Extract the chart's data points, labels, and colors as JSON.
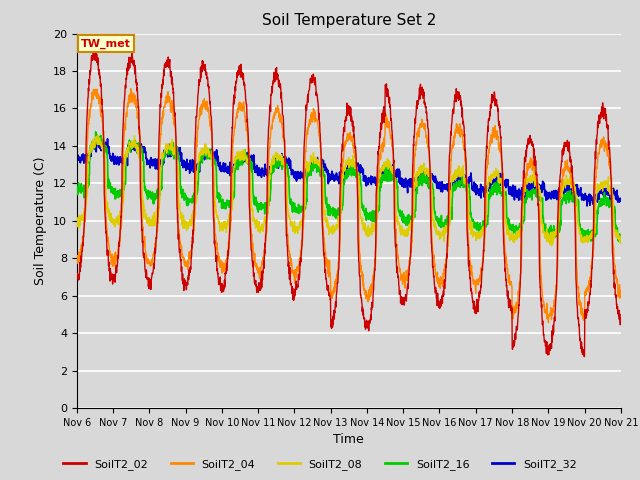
{
  "title": "Soil Temperature Set 2",
  "xlabel": "Time",
  "ylabel": "Soil Temperature (C)",
  "ylim": [
    0,
    20
  ],
  "annotation": "TW_met",
  "annotation_color": "#cc0000",
  "annotation_bg": "#ffffcc",
  "annotation_border": "#cc8800",
  "background_color": "#d8d8d8",
  "plot_bg": "#d8d8d8",
  "grid_color": "#ffffff",
  "tick_labels": [
    "Nov 6",
    "Nov 7",
    "Nov 8",
    "Nov 9",
    "Nov 10",
    "Nov 11",
    "Nov 12",
    "Nov 13",
    "Nov 14",
    "Nov 15",
    "Nov 16",
    "Nov 17",
    "Nov 18",
    "Nov 19",
    "Nov 20",
    "Nov 21"
  ],
  "legend": [
    "SoilT2_02",
    "SoilT2_04",
    "SoilT2_08",
    "SoilT2_16",
    "SoilT2_32"
  ],
  "colors": {
    "SoilT2_02": "#cc0000",
    "SoilT2_04": "#ff8800",
    "SoilT2_08": "#ddcc00",
    "SoilT2_16": "#00cc00",
    "SoilT2_32": "#0000cc"
  }
}
